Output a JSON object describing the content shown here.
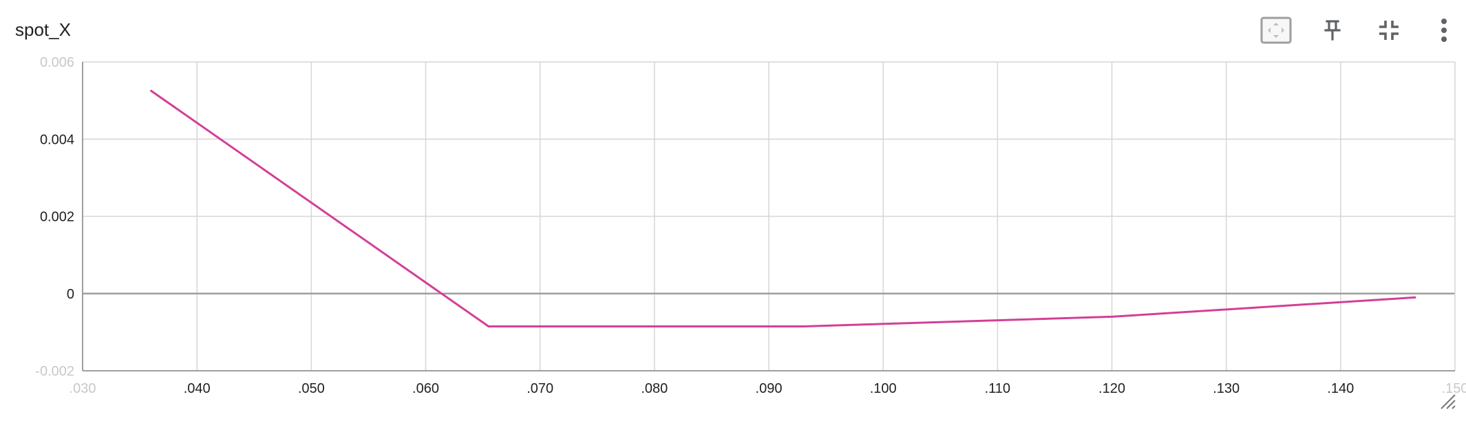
{
  "card": {
    "title": "spot_X"
  },
  "toolbar": {
    "icons": [
      "fit-to-data-icon",
      "pin-icon",
      "collapse-icon",
      "more-vert-icon"
    ]
  },
  "colors": {
    "series": "#d33f96",
    "grid": "#d6d6d6",
    "zero_line": "#9e9e9e",
    "axis": "#9e9e9e",
    "icon": "#5f6368"
  },
  "chart_data": {
    "type": "line",
    "title": "",
    "xlabel": "",
    "ylabel": "",
    "xlim": [
      0.03,
      0.15
    ],
    "ylim": [
      -0.002,
      0.006
    ],
    "x_ticks": [
      0.03,
      0.04,
      0.05,
      0.06,
      0.07,
      0.08,
      0.09,
      0.1,
      0.11,
      0.12,
      0.13,
      0.14,
      0.15
    ],
    "x_tick_labels": [
      ".030",
      ".040",
      ".050",
      ".060",
      ".070",
      ".080",
      ".090",
      ".100",
      ".110",
      ".120",
      ".130",
      ".140",
      ".150"
    ],
    "y_ticks": [
      -0.002,
      0,
      0.002,
      0.004,
      0.006
    ],
    "y_tick_labels": [
      "-0.002",
      "0",
      "0.002",
      "0.004",
      "0.006"
    ],
    "grid": true,
    "legend": "none",
    "series": [
      {
        "x": [
          0.036,
          0.0655,
          0.093,
          0.12,
          0.1465
        ],
        "y": [
          0.00525,
          -0.00085,
          -0.00085,
          -0.0006,
          -0.0001
        ]
      }
    ]
  }
}
